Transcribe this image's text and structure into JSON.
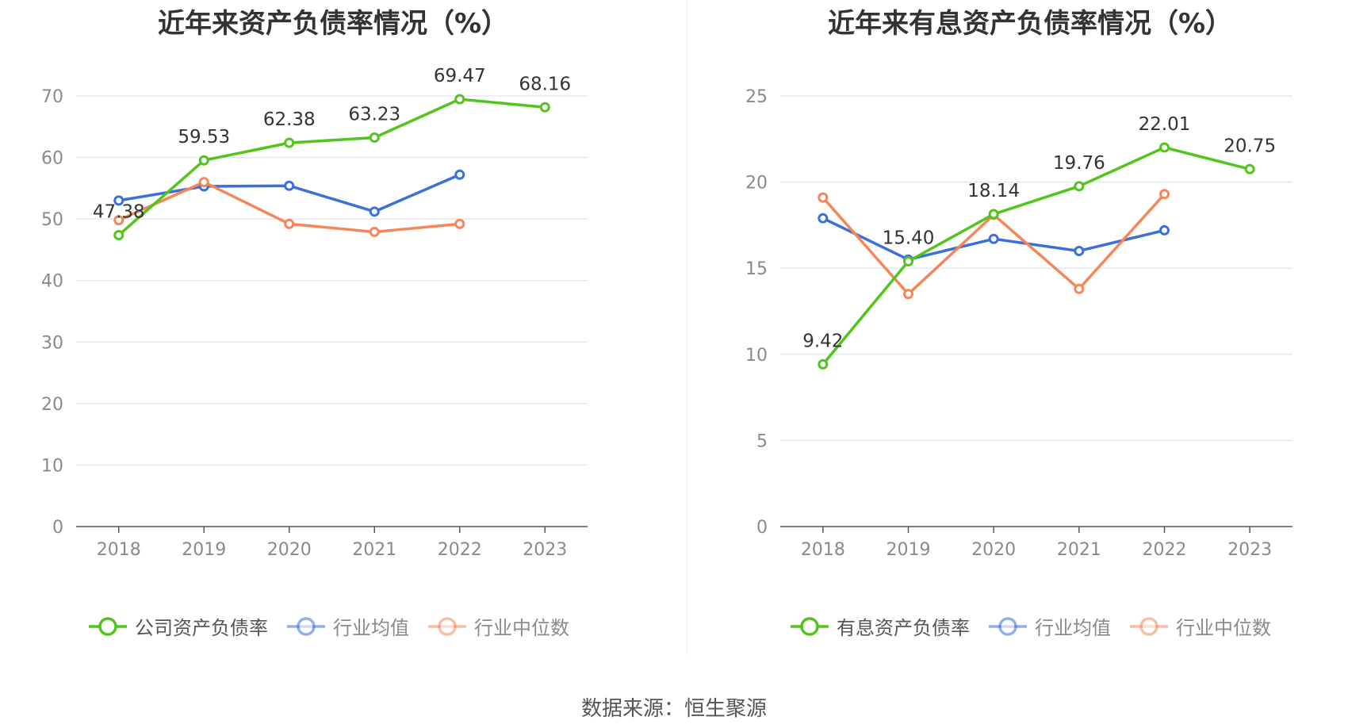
{
  "colors": {
    "green": "#52c41a",
    "blue": "#3b6fd9",
    "orange": "#f5865a",
    "grid": "#e3e8f0",
    "axis": "#555555"
  },
  "source": "数据来源：恒生聚源",
  "chart_data": [
    {
      "type": "line",
      "title": "近年来资产负债率情况（%）",
      "categories": [
        "2018",
        "2019",
        "2020",
        "2021",
        "2022",
        "2023"
      ],
      "ylim": [
        0,
        70
      ],
      "yticks": [
        0,
        10,
        20,
        30,
        40,
        50,
        60,
        70
      ],
      "grid": true,
      "legend_position": "bottom",
      "series": [
        {
          "name": "公司资产负债率",
          "values": [
            47.38,
            59.53,
            62.38,
            63.23,
            69.47,
            68.16
          ],
          "labels": [
            "47.38",
            "59.53",
            "62.38",
            "63.23",
            "69.47",
            "68.16"
          ],
          "color": "#52c41a"
        },
        {
          "name": "行业均值",
          "values": [
            53.0,
            55.3,
            55.4,
            51.2,
            57.2,
            null
          ],
          "color": "#3b6fd9"
        },
        {
          "name": "行业中位数",
          "values": [
            49.8,
            56.0,
            49.2,
            47.9,
            49.2,
            null
          ],
          "color": "#f5865a"
        }
      ]
    },
    {
      "type": "line",
      "title": "近年来有息资产负债率情况（%）",
      "categories": [
        "2018",
        "2019",
        "2020",
        "2021",
        "2022",
        "2023"
      ],
      "ylim": [
        0,
        25
      ],
      "yticks": [
        0,
        5,
        10,
        15,
        20,
        25
      ],
      "grid": true,
      "legend_position": "bottom",
      "series": [
        {
          "name": "有息资产负债率",
          "values": [
            9.42,
            15.4,
            18.14,
            19.76,
            22.01,
            20.75
          ],
          "labels": [
            "9.42",
            "15.40",
            "18.14",
            "19.76",
            "22.01",
            "20.75"
          ],
          "color": "#52c41a"
        },
        {
          "name": "行业均值",
          "values": [
            17.9,
            15.5,
            16.7,
            16.0,
            17.2,
            null
          ],
          "color": "#3b6fd9"
        },
        {
          "name": "行业中位数",
          "values": [
            19.1,
            13.5,
            18.1,
            13.8,
            19.3,
            null
          ],
          "color": "#f5865a"
        }
      ]
    }
  ]
}
